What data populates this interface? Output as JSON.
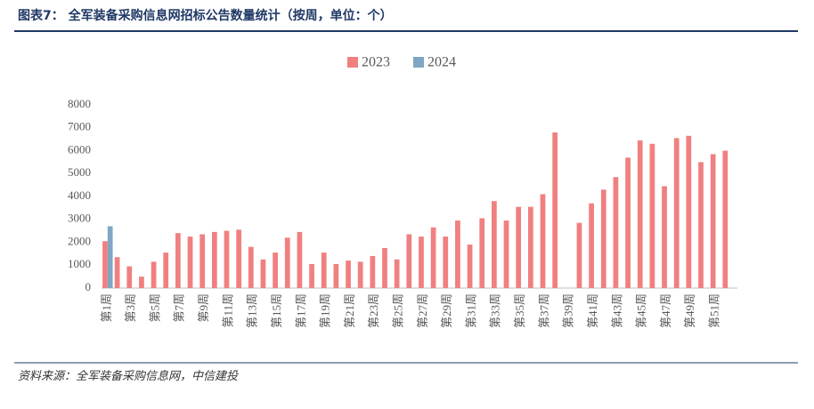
{
  "header": {
    "title": "图表7：  全军装备采购信息网招标公告数量统计（按周，单位：个）"
  },
  "chart_data": {
    "type": "bar",
    "categories": [
      "第1周",
      null,
      "第3周",
      null,
      "第5周",
      null,
      "第7周",
      null,
      "第9周",
      null,
      "第11周",
      null,
      "第13周",
      null,
      "第15周",
      null,
      "第17周",
      null,
      "第19周",
      null,
      "第21周",
      null,
      "第23周",
      null,
      "第25周",
      null,
      "第27周",
      null,
      "第29周",
      null,
      "第31周",
      null,
      "第33周",
      null,
      "第35周",
      null,
      "第37周",
      null,
      "第39周",
      null,
      "第41周",
      null,
      "第43周",
      null,
      "第45周",
      null,
      "第47周",
      null,
      "第49周",
      null,
      "第51周",
      null
    ],
    "series": [
      {
        "name": "2023",
        "color": "#f08080",
        "values": [
          2050,
          1350,
          950,
          500,
          1150,
          1550,
          2400,
          2250,
          2350,
          2450,
          2500,
          2550,
          1800,
          1250,
          1550,
          2200,
          2450,
          1050,
          1550,
          1050,
          1200,
          1150,
          1400,
          1750,
          1250,
          2350,
          2250,
          2650,
          2250,
          2950,
          1900,
          3050,
          3800,
          2950,
          3550,
          3550,
          4100,
          6800,
          null,
          2850,
          3700,
          4300,
          4850,
          5700,
          6450,
          6300,
          4450,
          6550,
          6650,
          5500,
          5850,
          6000
        ]
      },
      {
        "name": "2024",
        "color": "#7fa7c4",
        "values": [
          2700,
          null,
          null,
          null,
          null,
          null,
          null,
          null,
          null,
          null,
          null,
          null,
          null,
          null,
          null,
          null,
          null,
          null,
          null,
          null,
          null,
          null,
          null,
          null,
          null,
          null,
          null,
          null,
          null,
          null,
          null,
          null,
          null,
          null,
          null,
          null,
          null,
          null,
          null,
          null,
          null,
          null,
          null,
          null,
          null,
          null,
          null,
          null,
          null,
          null,
          null,
          null
        ]
      }
    ],
    "ylim": [
      0,
      8000
    ],
    "yticks": [
      0,
      1000,
      2000,
      3000,
      4000,
      5000,
      6000,
      7000,
      8000
    ],
    "grid": false,
    "legend": "top"
  },
  "footer": {
    "source": "资料来源：全军装备采购信息网，中信建投"
  }
}
